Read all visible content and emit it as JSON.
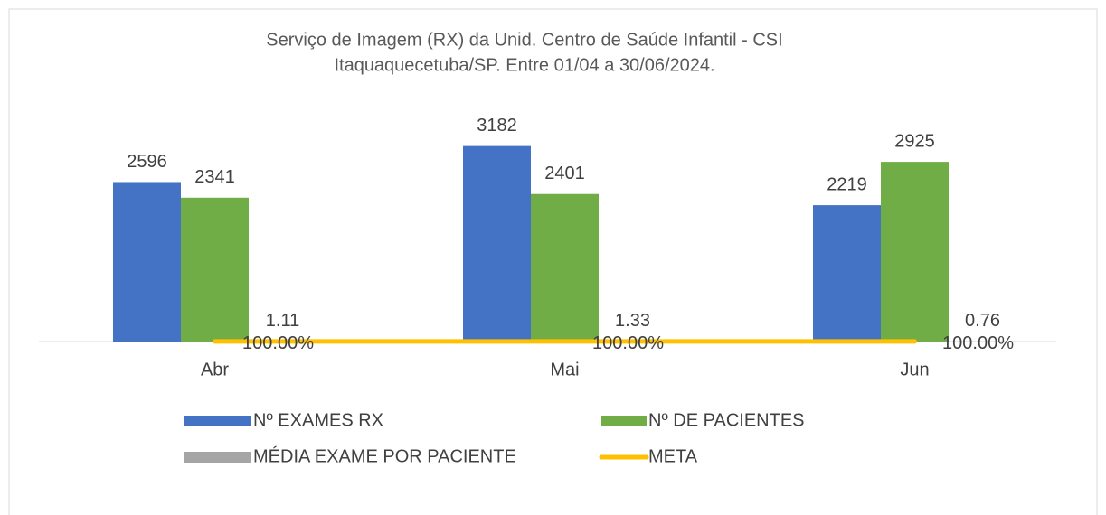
{
  "chart_data": {
    "type": "bar",
    "title": [
      "Serviço de Imagem (RX) da Unid. Centro de Saúde Infantil - CSI",
      "Itaquaquecetuba/SP. Entre 01/04 a 30/06/2024."
    ],
    "categories": [
      "Abr",
      "Mai",
      "Jun"
    ],
    "series": [
      {
        "name": "Nº EXAMES RX",
        "color": "#4472c4",
        "type": "bar",
        "values": [
          2596,
          3182,
          2219
        ]
      },
      {
        "name": "Nº DE PACIENTES",
        "color": "#70ad47",
        "type": "bar",
        "values": [
          2341,
          2401,
          2925
        ]
      },
      {
        "name": "MÉDIA EXAME POR PACIENTE",
        "color": "#a5a5a5",
        "type": "bar",
        "values": [
          1.11,
          1.33,
          0.76
        ]
      },
      {
        "name": "META",
        "color": "#ffc000",
        "type": "line",
        "values": [
          1,
          1,
          1
        ],
        "value_labels": [
          "100.00%",
          "100.00%",
          "100.00%"
        ]
      }
    ],
    "ylim": [
      0,
      3500
    ]
  }
}
